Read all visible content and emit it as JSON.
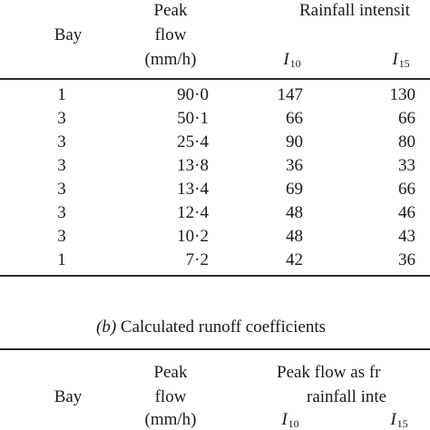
{
  "table_a": {
    "header": {
      "bay": "Bay",
      "peak_flow_line1": "Peak",
      "peak_flow_line2": "flow",
      "peak_flow_unit": "(mm/h)",
      "rainfall_group": "Rainfall intensit",
      "col_i10_symbol": "I",
      "col_i10_sub": "10",
      "col_i15_symbol": "I",
      "col_i15_sub": "15"
    },
    "rows": [
      {
        "bay": "1",
        "peak_flow": "90·0",
        "i10": "147",
        "i15": "130"
      },
      {
        "bay": "3",
        "peak_flow": "50·1",
        "i10": "66",
        "i15": "66"
      },
      {
        "bay": "3",
        "peak_flow": "25·4",
        "i10": "90",
        "i15": "80"
      },
      {
        "bay": "3",
        "peak_flow": "13·8",
        "i10": "36",
        "i15": "33"
      },
      {
        "bay": "3",
        "peak_flow": "13·4",
        "i10": "69",
        "i15": "66"
      },
      {
        "bay": "3",
        "peak_flow": "12·4",
        "i10": "48",
        "i15": "46"
      },
      {
        "bay": "3",
        "peak_flow": "10·2",
        "i10": "48",
        "i15": "43"
      },
      {
        "bay": "1",
        "peak_flow": "7·2",
        "i10": "42",
        "i15": "36"
      }
    ]
  },
  "table_b": {
    "caption_label": "(b)",
    "caption_text": "Calculated runoff coefficients",
    "header": {
      "bay": "Bay",
      "peak_flow_line1": "Peak",
      "peak_flow_line2": "flow",
      "peak_flow_unit": "(mm/h)",
      "group_line1": "Peak flow as fr",
      "group_line2": "rainfall inte",
      "col_i10_symbol": "I",
      "col_i10_sub": "10",
      "col_i15_symbol": "I",
      "col_i15_sub": "15"
    }
  }
}
